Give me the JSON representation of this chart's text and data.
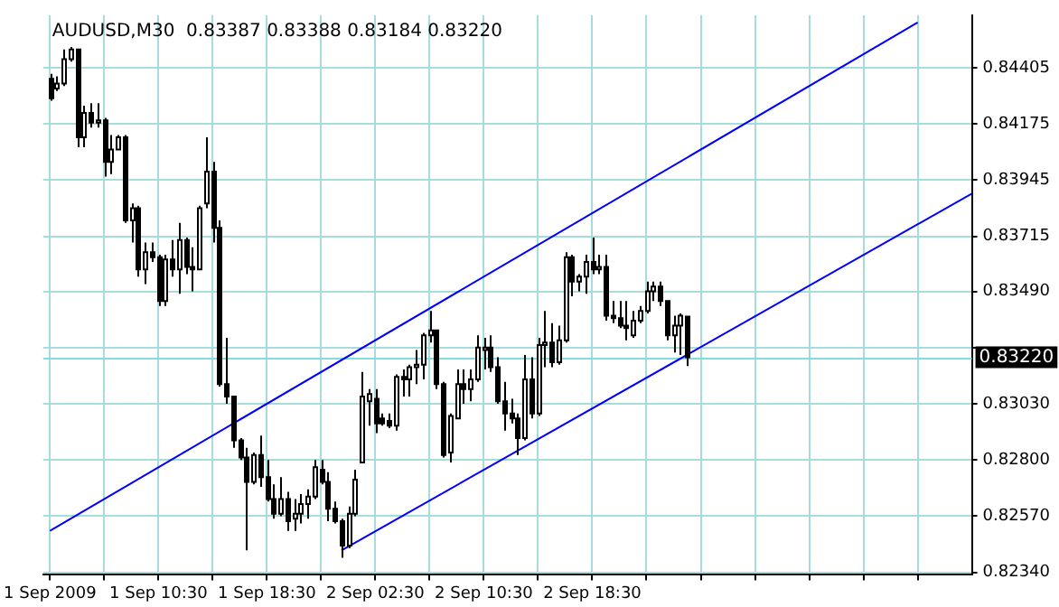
{
  "chart_data": {
    "type": "candlestick",
    "title": "AUDUSD,M30  0.83387 0.83388 0.83184 0.83220",
    "colors": [
      "#000000",
      "#ffffff",
      "#ffffff",
      "#ffffff",
      "#000000",
      "#ffffff",
      "#000000",
      "#ffffff",
      "#000000",
      "#ffffff",
      "#ffffff",
      "#000000",
      "#ffffff",
      "#000000",
      "#ffffff",
      "#000000",
      "#000000",
      "#ffffff",
      "#000000",
      "#ffffff",
      "#000000",
      "#000000",
      "#ffffff",
      "#ffffff",
      "#000000",
      "#000000",
      "#000000",
      "#000000",
      "#000000",
      "#000000",
      "#ffffff",
      "#000000",
      "#000000",
      "#000000",
      "#ffffff",
      "#000000",
      "#ffffff",
      "#ffffff",
      "#ffffff",
      "#ffffff",
      "#000000",
      "#000000",
      "#000000",
      "#000000",
      "#ffffff",
      "#ffffff",
      "#ffffff",
      "#ffffff",
      "#000000",
      "#000000",
      "#000000",
      "#ffffff",
      "#000000",
      "#ffffff",
      "#ffffff",
      "#ffffff",
      "#ffffff",
      "#000000",
      "#000000",
      "#ffffff",
      "#ffffff",
      "#000000",
      "#ffffff",
      "#ffffff",
      "#ffffff",
      "#000000",
      "#000000",
      "#000000",
      "#000000",
      "#000000",
      "#ffffff",
      "#000000",
      "#ffffff",
      "#ffffff",
      "#000000",
      "#ffffff",
      "#ffffff",
      "#000000",
      "#ffffff",
      "#ffffff",
      "#000000",
      "#ffffff",
      "#000000",
      "#000000",
      "#000000",
      "#000000",
      "#ffffff",
      "#ffffff",
      "#ffffff",
      "#ffffff",
      "#000000",
      "#000000",
      "#ffffff",
      "#ffffff",
      "#000000"
    ],
    "x": [
      "2009-09-01T02:30",
      "2009-09-01T03:00",
      "2009-09-01T03:30",
      "2009-09-01T04:00",
      "2009-09-01T04:30",
      "2009-09-01T05:00",
      "2009-09-01T05:30",
      "2009-09-01T06:00",
      "2009-09-01T06:30",
      "2009-09-01T07:00",
      "2009-09-01T07:30",
      "2009-09-01T08:00",
      "2009-09-01T08:30",
      "2009-09-01T09:00",
      "2009-09-01T09:30",
      "2009-09-01T10:00",
      "2009-09-01T10:30",
      "2009-09-01T11:00",
      "2009-09-01T11:30",
      "2009-09-01T12:00",
      "2009-09-01T12:30",
      "2009-09-01T13:00",
      "2009-09-01T13:30",
      "2009-09-01T14:00",
      "2009-09-01T14:30",
      "2009-09-01T15:00",
      "2009-09-01T15:30",
      "2009-09-01T16:00",
      "2009-09-01T16:30",
      "2009-09-01T17:00",
      "2009-09-01T17:30",
      "2009-09-01T18:00",
      "2009-09-01T18:30",
      "2009-09-01T19:00",
      "2009-09-01T19:30",
      "2009-09-01T20:00",
      "2009-09-01T20:30",
      "2009-09-01T21:00",
      "2009-09-01T21:30",
      "2009-09-01T22:00",
      "2009-09-01T22:30",
      "2009-09-01T23:00",
      "2009-09-01T23:30",
      "2009-09-02T00:00",
      "2009-09-02T00:30",
      "2009-09-02T01:00",
      "2009-09-02T01:30",
      "2009-09-02T02:00",
      "2009-09-02T02:30",
      "2009-09-02T03:00",
      "2009-09-02T03:30",
      "2009-09-02T04:00",
      "2009-09-02T04:30",
      "2009-09-02T05:00",
      "2009-09-02T05:30",
      "2009-09-02T06:00",
      "2009-09-02T06:30",
      "2009-09-02T07:00",
      "2009-09-02T07:30",
      "2009-09-02T08:00",
      "2009-09-02T08:30",
      "2009-09-02T09:00",
      "2009-09-02T09:30",
      "2009-09-02T10:00",
      "2009-09-02T10:30",
      "2009-09-02T11:00",
      "2009-09-02T11:30",
      "2009-09-02T12:00",
      "2009-09-02T12:30",
      "2009-09-02T13:00",
      "2009-09-02T13:30",
      "2009-09-02T14:00",
      "2009-09-02T14:30",
      "2009-09-02T15:00",
      "2009-09-02T15:30",
      "2009-09-02T16:00",
      "2009-09-02T16:30",
      "2009-09-02T17:00",
      "2009-09-02T17:30",
      "2009-09-02T18:00",
      "2009-09-02T18:30",
      "2009-09-02T19:00",
      "2009-09-02T19:30",
      "2009-09-02T20:00",
      "2009-09-02T20:30",
      "2009-09-02T21:00",
      "2009-09-02T21:30",
      "2009-09-02T22:00",
      "2009-09-02T22:30",
      "2009-09-02T23:00",
      "2009-09-02T23:30",
      "2009-09-03T00:00",
      "2009-09-03T00:30",
      "2009-09-03T01:00",
      "2009-09-03T01:30"
    ],
    "ohlc": [
      [
        0.8436,
        0.8438,
        0.8427,
        0.8428
      ],
      [
        0.8432,
        0.8437,
        0.8431,
        0.8434
      ],
      [
        0.8434,
        0.8448,
        0.8433,
        0.8444
      ],
      [
        0.8444,
        0.8449,
        0.8443,
        0.8448
      ],
      [
        0.8448,
        0.8448,
        0.8408,
        0.8412
      ],
      [
        0.8412,
        0.8425,
        0.8408,
        0.8422
      ],
      [
        0.8422,
        0.8426,
        0.8416,
        0.8418
      ],
      [
        0.8418,
        0.8426,
        0.8416,
        0.8419
      ],
      [
        0.8419,
        0.842,
        0.8396,
        0.8402
      ],
      [
        0.8402,
        0.8413,
        0.8397,
        0.8407
      ],
      [
        0.8407,
        0.8413,
        0.8407,
        0.8412
      ],
      [
        0.8412,
        0.8413,
        0.8377,
        0.8378
      ],
      [
        0.8378,
        0.8385,
        0.8369,
        0.8383
      ],
      [
        0.8383,
        0.8384,
        0.8355,
        0.8358
      ],
      [
        0.8358,
        0.8369,
        0.8352,
        0.8365
      ],
      [
        0.8365,
        0.8369,
        0.8361,
        0.8363
      ],
      [
        0.8363,
        0.8364,
        0.8343,
        0.8345
      ],
      [
        0.8345,
        0.8364,
        0.8343,
        0.8362
      ],
      [
        0.8362,
        0.837,
        0.8355,
        0.8358
      ],
      [
        0.8358,
        0.8377,
        0.8348,
        0.837
      ],
      [
        0.837,
        0.8371,
        0.8356,
        0.8359
      ],
      [
        0.8359,
        0.8367,
        0.8349,
        0.8358
      ],
      [
        0.8358,
        0.8384,
        0.8358,
        0.8383
      ],
      [
        0.8385,
        0.8412,
        0.8383,
        0.8398
      ],
      [
        0.8398,
        0.8402,
        0.8369,
        0.8375
      ],
      [
        0.8375,
        0.8378,
        0.831,
        0.8311
      ],
      [
        0.8311,
        0.833,
        0.8303,
        0.8306
      ],
      [
        0.8306,
        0.8306,
        0.8285,
        0.8288
      ],
      [
        0.8288,
        0.8289,
        0.828,
        0.8281
      ],
      [
        0.8281,
        0.8285,
        0.8243,
        0.8271
      ],
      [
        0.8271,
        0.8283,
        0.827,
        0.8282
      ],
      [
        0.8282,
        0.829,
        0.8269,
        0.8273
      ],
      [
        0.8273,
        0.828,
        0.8263,
        0.8264
      ],
      [
        0.8264,
        0.827,
        0.8256,
        0.8258
      ],
      [
        0.8258,
        0.8273,
        0.8257,
        0.8264
      ],
      [
        0.8264,
        0.8267,
        0.8251,
        0.8255
      ],
      [
        0.8256,
        0.8264,
        0.8251,
        0.8258
      ],
      [
        0.8258,
        0.8266,
        0.8254,
        0.8262
      ],
      [
        0.8262,
        0.8268,
        0.8256,
        0.8265
      ],
      [
        0.8265,
        0.828,
        0.8264,
        0.8277
      ],
      [
        0.8276,
        0.828,
        0.827,
        0.8271
      ],
      [
        0.8271,
        0.8275,
        0.8255,
        0.826
      ],
      [
        0.826,
        0.8263,
        0.8254,
        0.8255
      ],
      [
        0.8255,
        0.8256,
        0.824,
        0.8245
      ],
      [
        0.8245,
        0.8261,
        0.8244,
        0.8258
      ],
      [
        0.8258,
        0.8276,
        0.8257,
        0.8272
      ],
      [
        0.8279,
        0.8316,
        0.8279,
        0.8306
      ],
      [
        0.8304,
        0.8309,
        0.8294,
        0.8307
      ],
      [
        0.8305,
        0.8309,
        0.8291,
        0.8295
      ],
      [
        0.8297,
        0.8299,
        0.8294,
        0.8295
      ],
      [
        0.8296,
        0.8299,
        0.8293,
        0.8294
      ],
      [
        0.8294,
        0.8315,
        0.8292,
        0.8314
      ],
      [
        0.8314,
        0.8317,
        0.8306,
        0.8313
      ],
      [
        0.8313,
        0.8319,
        0.8306,
        0.8318
      ],
      [
        0.8318,
        0.8325,
        0.8311,
        0.8319
      ],
      [
        0.8319,
        0.8332,
        0.8313,
        0.8331
      ],
      [
        0.8331,
        0.8341,
        0.8328,
        0.8333
      ],
      [
        0.8333,
        0.8333,
        0.8309,
        0.8311
      ],
      [
        0.8311,
        0.8312,
        0.8281,
        0.8282
      ],
      [
        0.8283,
        0.8299,
        0.8279,
        0.8298
      ],
      [
        0.8297,
        0.8317,
        0.8297,
        0.8311
      ],
      [
        0.8311,
        0.8317,
        0.8303,
        0.8309
      ],
      [
        0.8309,
        0.8317,
        0.8304,
        0.8313
      ],
      [
        0.8313,
        0.8331,
        0.8312,
        0.8326
      ],
      [
        0.8325,
        0.833,
        0.8317,
        0.8326
      ],
      [
        0.8326,
        0.8331,
        0.8316,
        0.8318
      ],
      [
        0.8318,
        0.8322,
        0.8303,
        0.8304
      ],
      [
        0.8304,
        0.8312,
        0.8292,
        0.8299
      ],
      [
        0.8299,
        0.8305,
        0.8295,
        0.8297
      ],
      [
        0.8297,
        0.8299,
        0.8282,
        0.8289
      ],
      [
        0.8289,
        0.8323,
        0.8288,
        0.8313
      ],
      [
        0.8313,
        0.8322,
        0.8297,
        0.8299
      ],
      [
        0.8299,
        0.833,
        0.8298,
        0.8327
      ],
      [
        0.8327,
        0.8341,
        0.8318,
        0.8328
      ],
      [
        0.8328,
        0.8336,
        0.8318,
        0.832
      ],
      [
        0.832,
        0.8335,
        0.8319,
        0.8329
      ],
      [
        0.8329,
        0.8365,
        0.8328,
        0.8363
      ],
      [
        0.8363,
        0.8364,
        0.8347,
        0.8353
      ],
      [
        0.8353,
        0.8356,
        0.8349,
        0.8355
      ],
      [
        0.8355,
        0.8364,
        0.8348,
        0.8361
      ],
      [
        0.8361,
        0.8371,
        0.8356,
        0.8358
      ],
      [
        0.8358,
        0.8364,
        0.8356,
        0.8359
      ],
      [
        0.8359,
        0.8364,
        0.8337,
        0.8339
      ],
      [
        0.8339,
        0.8345,
        0.8336,
        0.8338
      ],
      [
        0.8338,
        0.8345,
        0.8334,
        0.8335
      ],
      [
        0.8335,
        0.8345,
        0.8329,
        0.8334
      ],
      [
        0.8331,
        0.8341,
        0.833,
        0.8337
      ],
      [
        0.8337,
        0.8343,
        0.8336,
        0.8341
      ],
      [
        0.8341,
        0.8353,
        0.834,
        0.8349
      ],
      [
        0.8349,
        0.8353,
        0.8345,
        0.8351
      ],
      [
        0.8351,
        0.8353,
        0.8343,
        0.8345
      ],
      [
        0.8345,
        0.8345,
        0.8329,
        0.8331
      ],
      [
        0.8331,
        0.8339,
        0.8324,
        0.8335
      ],
      [
        0.8335,
        0.834,
        0.8323,
        0.8339
      ],
      [
        0.83387,
        0.83388,
        0.83184,
        0.8322
      ]
    ],
    "series": [
      {
        "type": "line",
        "color": "#0000ff",
        "x": [
          "2009-09-01T02:30",
          "2009-09-03T18:30"
        ],
        "values": [
          0.8251,
          0.8459
        ]
      },
      {
        "type": "line",
        "color": "#0000ff",
        "x": [
          "2009-09-02T00:00",
          "2009-09-03T22:30"
        ],
        "values": [
          0.8243,
          0.8389
        ]
      }
    ],
    "ref_lines": [
      {
        "axis": "y",
        "value": 0.8322,
        "label": "0.83220",
        "color": "#80dede"
      }
    ],
    "xlim": [
      "2009-09-01T02:00",
      "2009-09-03T22:30"
    ],
    "xticks": [
      {
        "value": "2009-09-01T02:30",
        "label": "1 Sep 2009"
      },
      {
        "value": "2009-09-01T06:30",
        "label": null
      },
      {
        "value": "2009-09-01T10:30",
        "label": "1 Sep 10:30"
      },
      {
        "value": "2009-09-01T14:30",
        "label": null
      },
      {
        "value": "2009-09-01T18:30",
        "label": "1 Sep 18:30"
      },
      {
        "value": "2009-09-01T22:30",
        "label": null
      },
      {
        "value": "2009-09-02T02:30",
        "label": "2 Sep 02:30"
      },
      {
        "value": "2009-09-02T06:30",
        "label": null
      },
      {
        "value": "2009-09-02T10:30",
        "label": "2 Sep 10:30"
      },
      {
        "value": "2009-09-02T14:30",
        "label": null
      },
      {
        "value": "2009-09-02T18:30",
        "label": "2 Sep 18:30"
      },
      {
        "value": "2009-09-02T22:30",
        "label": null
      },
      {
        "value": "2009-09-03T02:30",
        "label": null
      },
      {
        "value": "2009-09-03T06:30",
        "label": null
      },
      {
        "value": "2009-09-03T10:30",
        "label": null
      },
      {
        "value": "2009-09-03T14:30",
        "label": null
      },
      {
        "value": "2009-09-03T18:30",
        "label": null
      }
    ],
    "ylim": [
      0.8233,
      0.8462
    ],
    "yticks": [
      {
        "value": 0.8234,
        "label": "0.82340"
      },
      {
        "value": 0.8257,
        "label": "0.82570"
      },
      {
        "value": 0.828,
        "label": "0.82800"
      },
      {
        "value": 0.8303,
        "label": "0.83030"
      },
      {
        "value": 0.8326,
        "label": null
      },
      {
        "value": 0.8349,
        "label": "0.83490"
      },
      0.83715,
      0.83945,
      0.84175,
      0.84405
    ],
    "grid": true
  }
}
